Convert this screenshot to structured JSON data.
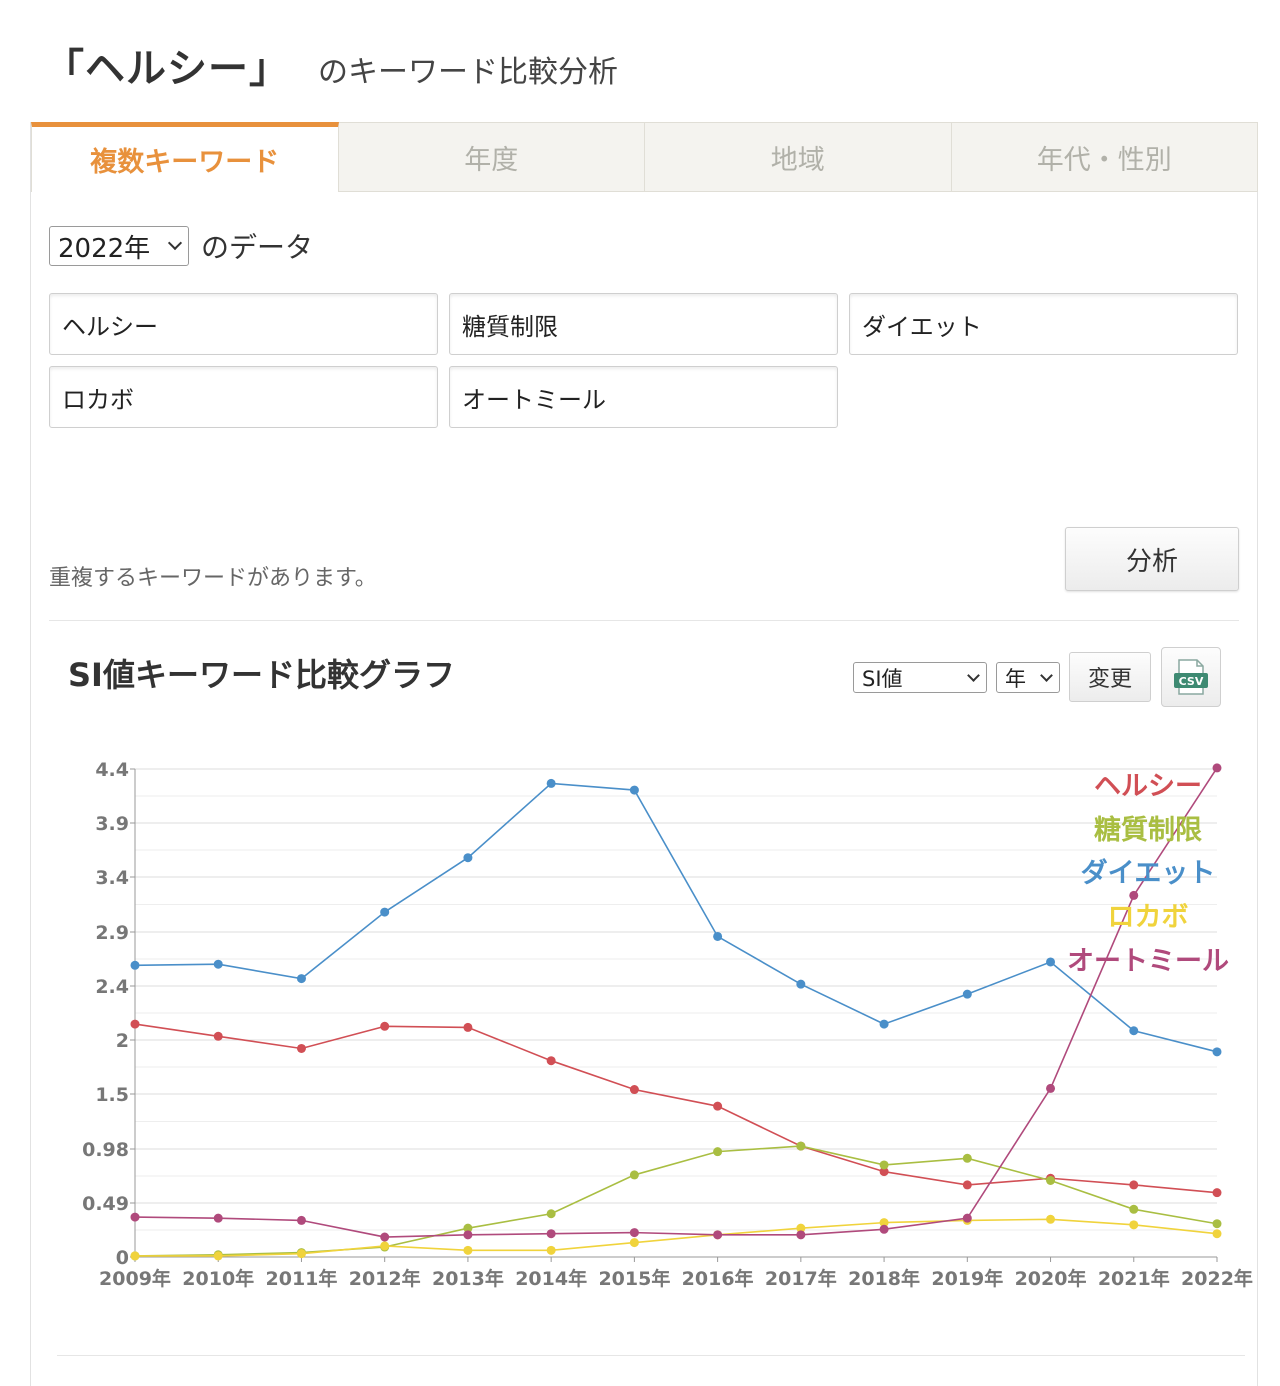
{
  "header": {
    "keyword": "「ヘルシー」",
    "suffix": "のキーワード比較分析"
  },
  "tabs": [
    {
      "label": "複数キーワード",
      "active": true
    },
    {
      "label": "年度",
      "active": false
    },
    {
      "label": "地域",
      "active": false
    },
    {
      "label": "年代・性別",
      "active": false
    }
  ],
  "data_year": {
    "selected": "2022年",
    "suffix": "のデータ"
  },
  "keyword_inputs": [
    "ヘルシー",
    "糖質制限",
    "ダイエット",
    "ロカボ",
    "オートミール"
  ],
  "duplicate_message": "重複するキーワードがあります。",
  "analyze_label": "分析",
  "chart_section": {
    "title": "SI値キーワード比較グラフ",
    "metric_selected": "SI値",
    "period_selected": "年",
    "change_label": "変更",
    "csv_icon": "csv-download-icon",
    "csv_text": "CSV"
  },
  "chart_data": {
    "type": "line",
    "title": "",
    "xlabel": "",
    "ylabel": "",
    "categories": [
      "2009年",
      "2010年",
      "2011年",
      "2012年",
      "2013年",
      "2014年",
      "2015年",
      "2016年",
      "2017年",
      "2018年",
      "2019年",
      "2020年",
      "2021年",
      "2022年"
    ],
    "y_ticks": [
      "4.4",
      "3.9",
      "3.4",
      "2.9",
      "2.4",
      "2",
      "1.5",
      "0.98",
      "0.49",
      "0"
    ],
    "ylim": [
      0,
      4.4
    ],
    "grid": true,
    "legend_position": "top-right",
    "series": [
      {
        "name": "ヘルシー",
        "color": "#d14f55",
        "values": [
          2.1,
          1.99,
          1.88,
          2.08,
          2.07,
          1.77,
          1.51,
          1.36,
          1.0,
          0.77,
          0.65,
          0.71,
          0.65,
          0.58
        ]
      },
      {
        "name": "糖質制限",
        "color": "#a9be42",
        "values": [
          0.01,
          0.02,
          0.04,
          0.09,
          0.26,
          0.39,
          0.74,
          0.95,
          1.0,
          0.83,
          0.89,
          0.69,
          0.43,
          0.3
        ]
      },
      {
        "name": "ダイエット",
        "color": "#4a8fc9",
        "values": [
          2.63,
          2.64,
          2.51,
          3.11,
          3.6,
          4.27,
          4.21,
          2.89,
          2.46,
          2.1,
          2.37,
          2.66,
          2.04,
          1.85
        ]
      },
      {
        "name": "ロカボ",
        "color": "#f0d33c",
        "values": [
          0.01,
          0.01,
          0.03,
          0.1,
          0.06,
          0.06,
          0.13,
          0.2,
          0.26,
          0.31,
          0.33,
          0.34,
          0.29,
          0.21
        ]
      },
      {
        "name": "オートミール",
        "color": "#b04a7c",
        "values": [
          0.36,
          0.35,
          0.33,
          0.18,
          0.2,
          0.21,
          0.22,
          0.2,
          0.2,
          0.25,
          0.35,
          1.52,
          3.26,
          4.41
        ]
      }
    ]
  }
}
